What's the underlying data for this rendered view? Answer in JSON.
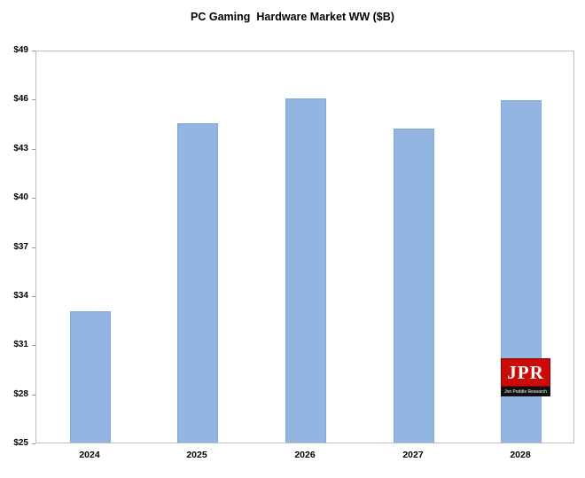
{
  "chart_data": {
    "type": "bar",
    "title": "PC Gaming  Hardware Market WW ($B)",
    "categories": [
      "2024",
      "2025",
      "2026",
      "2027",
      "2028"
    ],
    "values": [
      33,
      44.5,
      46,
      44.2,
      45.9
    ],
    "xlabel": "",
    "ylabel": "",
    "ylim": [
      25,
      49
    ],
    "ytick_step": 3,
    "ytick_prefix": "$",
    "grid": false,
    "legend_position": "none",
    "bar_color": "#92b5e2"
  },
  "logo": {
    "text": "JPR",
    "subtext": "Jon Peddie Research",
    "bg_color": "#cc0a0a"
  }
}
